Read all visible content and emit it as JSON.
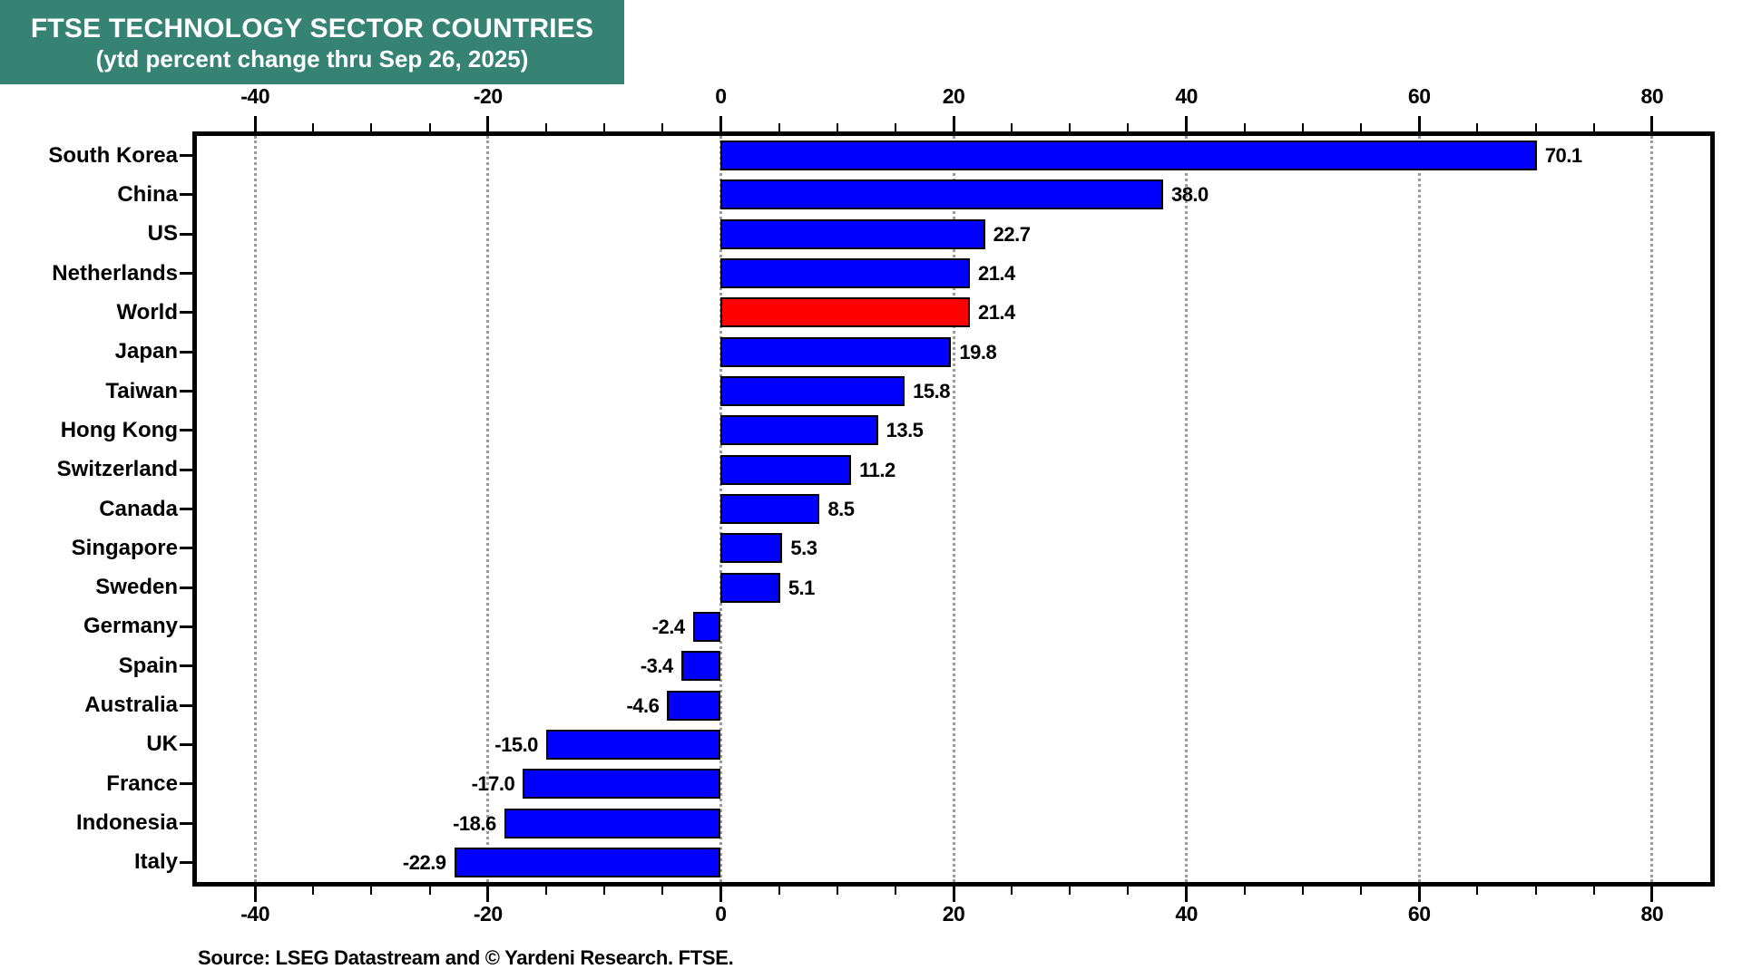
{
  "title": {
    "line1": "FTSE TECHNOLOGY SECTOR COUNTRIES",
    "line2": "(ytd percent change thru Sep 26, 2025)",
    "bg_color": "#368374",
    "text_color": "#FFFFFF"
  },
  "source_note": "Source: LSEG Datastream and © Yardeni Research. FTSE.",
  "chart_data": {
    "type": "bar",
    "orientation": "horizontal",
    "title": "FTSE TECHNOLOGY SECTOR COUNTRIES (ytd percent change thru Sep 26, 2025)",
    "categories": [
      "South Korea",
      "China",
      "US",
      "Netherlands",
      "World",
      "Japan",
      "Taiwan",
      "Hong Kong",
      "Switzerland",
      "Canada",
      "Singapore",
      "Sweden",
      "Germany",
      "Spain",
      "Australia",
      "UK",
      "France",
      "Indonesia",
      "Italy"
    ],
    "values": [
      70.1,
      38.0,
      22.7,
      21.4,
      21.4,
      19.8,
      15.8,
      13.5,
      11.2,
      8.5,
      5.3,
      5.1,
      -2.4,
      -3.4,
      -4.6,
      -15.0,
      -17.0,
      -18.6,
      -22.9
    ],
    "value_labels": [
      "70.1",
      "38.0",
      "22.7",
      "21.4",
      "21.4",
      "19.8",
      "15.8",
      "13.5",
      "11.2",
      "8.5",
      "5.3",
      "5.1",
      "-2.4",
      "-3.4",
      "-4.6",
      "-15.0",
      "-17.0",
      "-18.6",
      "-22.9"
    ],
    "highlight_category": "World",
    "highlight_index": 4,
    "xlim": [
      -45,
      85
    ],
    "x_major_ticks": [
      -40,
      -20,
      0,
      20,
      40,
      60,
      80
    ],
    "x_major_tick_labels": [
      "-40",
      "-20",
      "0",
      "20",
      "40",
      "60",
      "80"
    ],
    "x_minor_tick_step": 5,
    "grid": "vertical dotted gridlines at major ticks",
    "axis_label_positions": [
      "top",
      "bottom"
    ],
    "colors": {
      "bar": "#0000FF",
      "highlight_bar": "#FF0000",
      "bar_border": "#000000",
      "grid": "#9B9B9B",
      "frame": "#000000",
      "text": "#000000"
    }
  }
}
